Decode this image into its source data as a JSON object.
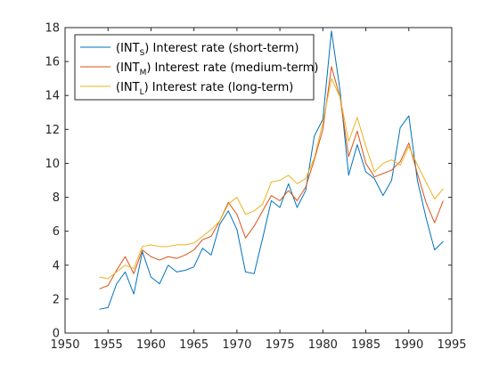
{
  "chart_data": {
    "type": "line",
    "title": "",
    "xlabel": "",
    "ylabel": "",
    "xlim": [
      1950,
      1995
    ],
    "ylim": [
      0,
      18
    ],
    "xticks": [
      1950,
      1955,
      1960,
      1965,
      1970,
      1975,
      1980,
      1985,
      1990,
      1995
    ],
    "yticks": [
      0,
      2,
      4,
      6,
      8,
      10,
      12,
      14,
      16,
      18
    ],
    "grid": false,
    "legend_position": "top-left",
    "series": [
      {
        "name": "Interest rate (short-term)",
        "symbol": "INT",
        "subscript": "S",
        "color": "#0072BD",
        "x": [
          1954,
          1955,
          1956,
          1957,
          1958,
          1959,
          1960,
          1961,
          1962,
          1963,
          1964,
          1965,
          1966,
          1967,
          1968,
          1969,
          1970,
          1971,
          1972,
          1973,
          1974,
          1975,
          1976,
          1977,
          1978,
          1979,
          1980,
          1981,
          1982,
          1983,
          1984,
          1985,
          1986,
          1987,
          1988,
          1989,
          1990,
          1991,
          1992,
          1993,
          1994
        ],
        "y": [
          1.4,
          1.5,
          2.9,
          3.6,
          2.3,
          4.8,
          3.3,
          2.9,
          4.0,
          3.6,
          3.7,
          3.9,
          5.0,
          4.6,
          6.4,
          7.2,
          6.1,
          3.6,
          3.5,
          5.6,
          7.8,
          7.4,
          8.8,
          7.4,
          8.4,
          11.6,
          12.6,
          17.8,
          14.3,
          9.3,
          11.1,
          9.5,
          9.1,
          8.1,
          9.0,
          12.1,
          12.8,
          9.0,
          6.8,
          4.9,
          5.4
        ]
      },
      {
        "name": "Interest rate (medium-term)",
        "symbol": "INT",
        "subscript": "M",
        "color": "#D95319",
        "x": [
          1954,
          1955,
          1956,
          1957,
          1958,
          1959,
          1960,
          1961,
          1962,
          1963,
          1964,
          1965,
          1966,
          1967,
          1968,
          1969,
          1970,
          1971,
          1972,
          1973,
          1974,
          1975,
          1976,
          1977,
          1978,
          1979,
          1980,
          1981,
          1982,
          1983,
          1984,
          1985,
          1986,
          1987,
          1988,
          1989,
          1990,
          1991,
          1992,
          1993,
          1994
        ],
        "y": [
          2.6,
          2.8,
          3.7,
          4.5,
          3.5,
          4.9,
          4.5,
          4.3,
          4.5,
          4.4,
          4.6,
          4.9,
          5.5,
          5.7,
          6.6,
          7.7,
          7.0,
          5.6,
          6.3,
          7.2,
          8.1,
          7.8,
          8.4,
          7.8,
          8.6,
          10.2,
          12.0,
          15.7,
          13.9,
          10.4,
          11.9,
          10.0,
          9.2,
          9.4,
          9.6,
          10.1,
          11.2,
          9.4,
          7.7,
          6.5,
          7.8
        ]
      },
      {
        "name": "Interest rate (long-term)",
        "symbol": "INT",
        "subscript": "L",
        "color": "#EDB120",
        "x": [
          1954,
          1955,
          1956,
          1957,
          1958,
          1959,
          1960,
          1961,
          1962,
          1963,
          1964,
          1965,
          1966,
          1967,
          1968,
          1969,
          1970,
          1971,
          1972,
          1973,
          1974,
          1975,
          1976,
          1977,
          1978,
          1979,
          1980,
          1981,
          1982,
          1983,
          1984,
          1985,
          1986,
          1987,
          1988,
          1989,
          1990,
          1991,
          1992,
          1993,
          1994
        ],
        "y": [
          3.3,
          3.2,
          3.6,
          4.0,
          3.8,
          5.1,
          5.2,
          5.1,
          5.1,
          5.2,
          5.2,
          5.3,
          5.7,
          6.1,
          6.6,
          7.6,
          8.0,
          7.0,
          7.2,
          7.6,
          8.9,
          9.0,
          9.3,
          8.8,
          9.1,
          10.3,
          12.4,
          15.0,
          13.9,
          11.3,
          12.7,
          11.0,
          9.5,
          10.0,
          10.2,
          9.9,
          11.0,
          9.9,
          8.9,
          7.9,
          8.5
        ]
      }
    ]
  }
}
